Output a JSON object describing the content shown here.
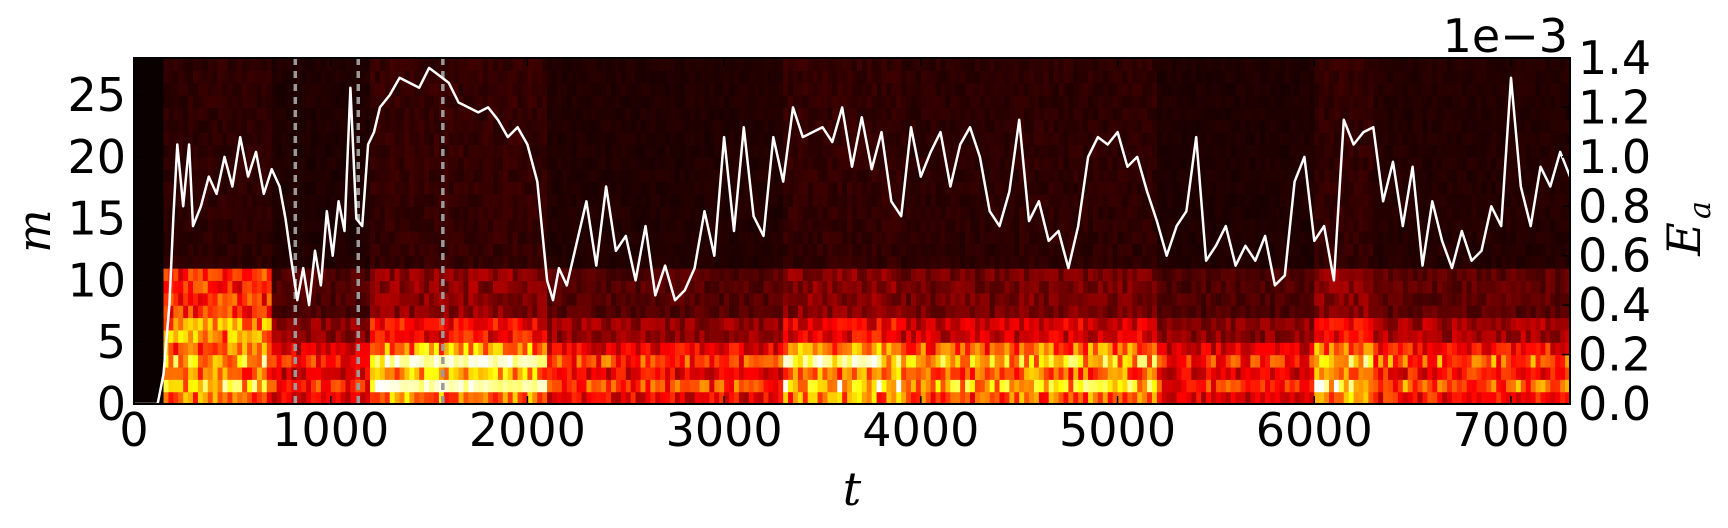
{
  "chart_data": {
    "type": "heatmap",
    "title": "",
    "xlabel": "t",
    "ylabel": "m",
    "y2label_main": "E",
    "y2label_sub": "a",
    "xlim": [
      0,
      7300
    ],
    "ylim": [
      0,
      28
    ],
    "y2lim": [
      0.0,
      1.4
    ],
    "y2_multiplier": "1e−3",
    "x_ticks": [
      "0",
      "1000",
      "2000",
      "3000",
      "4000",
      "5000",
      "6000",
      "7000"
    ],
    "x_tick_values": [
      0,
      1000,
      2000,
      3000,
      4000,
      5000,
      6000,
      7000
    ],
    "y_ticks": [
      "0",
      "5",
      "10",
      "15",
      "20",
      "25"
    ],
    "y_tick_values": [
      0,
      5,
      10,
      15,
      20,
      25
    ],
    "y2_ticks": [
      "0.0",
      "0.2",
      "0.4",
      "0.6",
      "0.8",
      "1.0",
      "1.2",
      "1.4"
    ],
    "y2_tick_values": [
      0.0,
      0.2,
      0.4,
      0.6,
      0.8,
      1.0,
      1.2,
      1.4
    ],
    "vlines": [
      820,
      1140,
      1570
    ],
    "vline_color": "#9a9a9a",
    "colormap": "hot",
    "grid": false,
    "series": [
      {
        "type": "line",
        "axis": "right",
        "color": "#ffffff",
        "x": [
          0,
          120,
          150,
          180,
          200,
          220,
          250,
          280,
          300,
          340,
          380,
          420,
          460,
          500,
          540,
          580,
          620,
          660,
          700,
          740,
          770,
          800,
          830,
          860,
          890,
          920,
          950,
          980,
          1010,
          1040,
          1070,
          1100,
          1130,
          1160,
          1190,
          1220,
          1250,
          1300,
          1350,
          1400,
          1450,
          1500,
          1550,
          1600,
          1650,
          1700,
          1750,
          1800,
          1850,
          1900,
          1950,
          2000,
          2050,
          2100,
          2130,
          2160,
          2200,
          2250,
          2300,
          2350,
          2400,
          2450,
          2500,
          2550,
          2600,
          2650,
          2700,
          2750,
          2800,
          2850,
          2900,
          2950,
          3000,
          3050,
          3100,
          3150,
          3200,
          3250,
          3300,
          3350,
          3400,
          3450,
          3500,
          3550,
          3600,
          3650,
          3700,
          3750,
          3800,
          3850,
          3900,
          3950,
          4000,
          4050,
          4100,
          4150,
          4200,
          4250,
          4300,
          4350,
          4400,
          4450,
          4500,
          4550,
          4600,
          4650,
          4700,
          4750,
          4800,
          4850,
          4900,
          4950,
          5000,
          5050,
          5100,
          5150,
          5200,
          5250,
          5300,
          5350,
          5400,
          5450,
          5500,
          5550,
          5600,
          5650,
          5700,
          5750,
          5800,
          5850,
          5900,
          5950,
          6000,
          6050,
          6100,
          6150,
          6200,
          6250,
          6300,
          6350,
          6400,
          6450,
          6500,
          6550,
          6600,
          6650,
          6700,
          6750,
          6800,
          6850,
          6900,
          6950,
          7000,
          7050,
          7100,
          7150,
          7200,
          7250,
          7300
        ],
        "y": [
          0.0,
          0.0,
          0.12,
          0.4,
          0.75,
          1.05,
          0.8,
          1.05,
          0.72,
          0.8,
          0.92,
          0.85,
          1.0,
          0.88,
          1.08,
          0.92,
          1.02,
          0.85,
          0.95,
          0.88,
          0.75,
          0.58,
          0.42,
          0.55,
          0.4,
          0.62,
          0.48,
          0.78,
          0.6,
          0.82,
          0.7,
          1.28,
          0.75,
          0.72,
          1.05,
          1.1,
          1.2,
          1.25,
          1.32,
          1.3,
          1.28,
          1.36,
          1.33,
          1.3,
          1.22,
          1.2,
          1.18,
          1.2,
          1.15,
          1.08,
          1.12,
          1.05,
          0.9,
          0.5,
          0.42,
          0.55,
          0.48,
          0.65,
          0.82,
          0.56,
          0.88,
          0.62,
          0.68,
          0.5,
          0.72,
          0.44,
          0.56,
          0.42,
          0.46,
          0.55,
          0.78,
          0.6,
          1.08,
          0.7,
          1.12,
          0.76,
          0.68,
          1.08,
          0.9,
          1.2,
          1.08,
          1.1,
          1.12,
          1.06,
          1.2,
          0.96,
          1.16,
          0.95,
          1.1,
          0.82,
          0.76,
          1.12,
          0.92,
          1.02,
          1.1,
          0.88,
          1.05,
          1.12,
          1.0,
          0.78,
          0.72,
          0.86,
          1.15,
          0.74,
          0.82,
          0.66,
          0.7,
          0.55,
          0.72,
          1.0,
          1.08,
          1.05,
          1.1,
          0.96,
          1.0,
          0.86,
          0.74,
          0.6,
          0.72,
          0.78,
          1.08,
          0.58,
          0.64,
          0.72,
          0.56,
          0.64,
          0.58,
          0.68,
          0.48,
          0.52,
          0.9,
          1.0,
          0.66,
          0.72,
          0.5,
          1.15,
          1.05,
          1.1,
          1.12,
          0.82,
          0.98,
          0.72,
          0.96,
          0.56,
          0.82,
          0.66,
          0.55,
          0.7,
          0.58,
          0.62,
          0.8,
          0.72,
          1.32,
          0.88,
          0.72,
          0.96,
          0.88,
          1.02,
          0.92
        ]
      }
    ]
  }
}
